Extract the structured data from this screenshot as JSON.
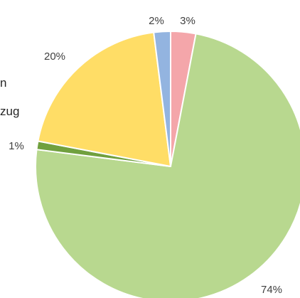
{
  "legend_fragments": [
    "n",
    "zug"
  ],
  "chart_data": {
    "type": "pie",
    "start_angle_deg": 0,
    "direction": "clockwise",
    "slices": [
      {
        "label": "3%",
        "value": 3,
        "color": "#f4a6aa"
      },
      {
        "label": "74%",
        "value": 74,
        "color": "#b8d88f"
      },
      {
        "label": "1%",
        "value": 1,
        "color": "#70a03e"
      },
      {
        "label": "20%",
        "value": 20,
        "color": "#ffdd66"
      },
      {
        "label": "2%",
        "value": 2,
        "color": "#93b4e0"
      }
    ]
  }
}
